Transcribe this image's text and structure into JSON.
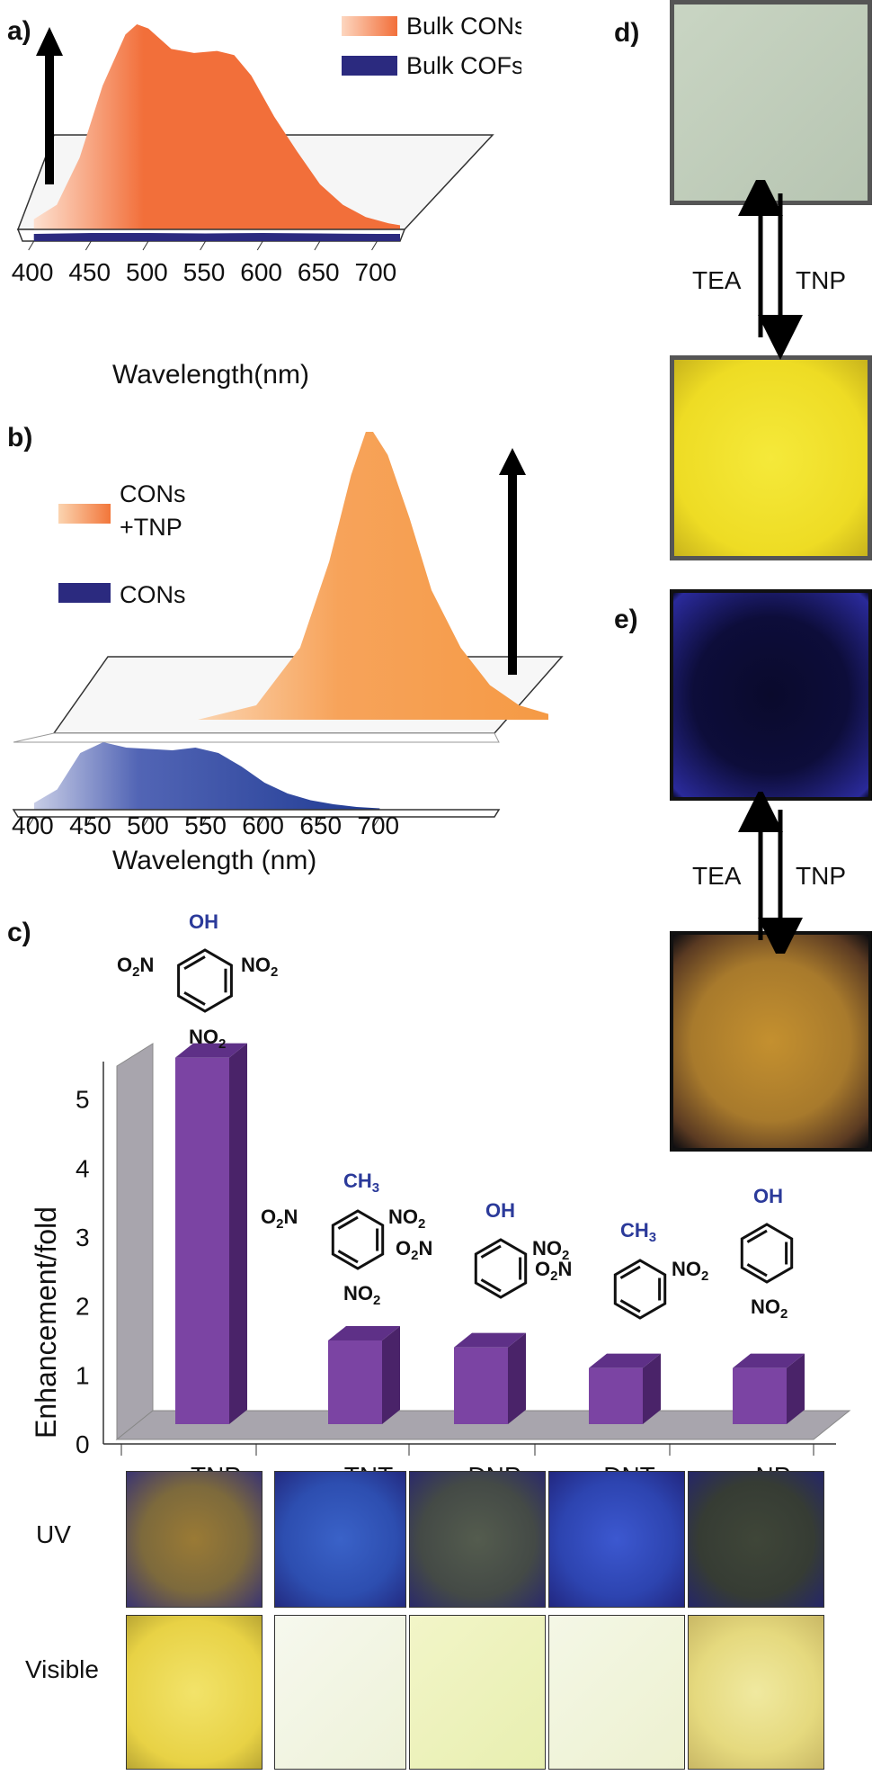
{
  "colors": {
    "orange": "#f26f3a",
    "orange_light": "#f7a35a",
    "navy": "#2b2a7f",
    "purple": "#7b44a3",
    "purple_dark": "#4a2369",
    "arrow": "#000000"
  },
  "panels": {
    "a_label": "a)",
    "b_label": "b)",
    "c_label": "c)",
    "d_label": "d)",
    "e_label": "e)"
  },
  "chart_data": [
    {
      "panel": "a",
      "type": "area",
      "xlabel": "Wavelength(nm)",
      "xticks": [
        "400",
        "450",
        "500",
        "550",
        "600",
        "650",
        "700"
      ],
      "xlim": [
        390,
        720
      ],
      "series": [
        {
          "name": "Bulk CONs",
          "color": "#f26f3a",
          "x": [
            400,
            420,
            440,
            460,
            480,
            490,
            500,
            520,
            540,
            560,
            575,
            590,
            610,
            630,
            650,
            670,
            690,
            710,
            720
          ],
          "y": [
            0.05,
            0.12,
            0.35,
            0.7,
            0.95,
            1.0,
            0.98,
            0.88,
            0.86,
            0.87,
            0.85,
            0.75,
            0.55,
            0.38,
            0.22,
            0.12,
            0.06,
            0.03,
            0.02
          ]
        },
        {
          "name": "Bulk COFs",
          "color": "#2b2a7f",
          "x": [
            400,
            450,
            500,
            550,
            600,
            650,
            700,
            720
          ],
          "y": [
            0.02,
            0.03,
            0.03,
            0.025,
            0.03,
            0.025,
            0.02,
            0.02
          ]
        }
      ]
    },
    {
      "panel": "b",
      "type": "area",
      "xlabel": "Wavelength (nm)",
      "xticks": [
        "400",
        "450",
        "500",
        "550",
        "600",
        "650",
        "700"
      ],
      "xlim": [
        390,
        720
      ],
      "series": [
        {
          "name": "CONs +TNP",
          "color": "#f7a35a",
          "x": [
            480,
            520,
            550,
            570,
            585,
            595,
            600,
            610,
            625,
            640,
            660,
            680,
            700,
            720
          ],
          "y": [
            0.0,
            0.05,
            0.25,
            0.55,
            0.85,
            1.0,
            1.0,
            0.92,
            0.7,
            0.45,
            0.25,
            0.12,
            0.05,
            0.02
          ]
        },
        {
          "name": "CONs",
          "color": "#2b4aa0",
          "x": [
            400,
            420,
            440,
            460,
            480,
            500,
            520,
            540,
            560,
            580,
            600,
            620,
            640,
            660,
            680,
            700
          ],
          "y": [
            0.05,
            0.15,
            0.42,
            0.5,
            0.46,
            0.45,
            0.44,
            0.46,
            0.42,
            0.32,
            0.2,
            0.12,
            0.07,
            0.04,
            0.02,
            0.01
          ]
        }
      ]
    },
    {
      "panel": "c",
      "type": "bar",
      "ylabel": "Enhancement/fold",
      "ylim": [
        0,
        6
      ],
      "yticks": [
        "0",
        "1",
        "2",
        "3",
        "4",
        "5"
      ],
      "categories": [
        "TNP",
        "TNT",
        "DNP",
        "DNT",
        "NP"
      ],
      "values": [
        5.6,
        1.5,
        1.4,
        1.1,
        1.1
      ]
    }
  ],
  "legend_a": {
    "item1": "Bulk CONs",
    "item2": "Bulk COFs"
  },
  "legend_b": {
    "item1_line1": "CONs",
    "item1_line2": "+TNP",
    "item2": "CONs"
  },
  "structures": {
    "oh": "OH",
    "ch3": "CH3",
    "o2n": "O2N",
    "no2": "NO2"
  },
  "row_labels": {
    "uv": "UV",
    "visible": "Visible"
  },
  "switch_labels": {
    "tea": "TEA",
    "tnp": "TNP"
  }
}
